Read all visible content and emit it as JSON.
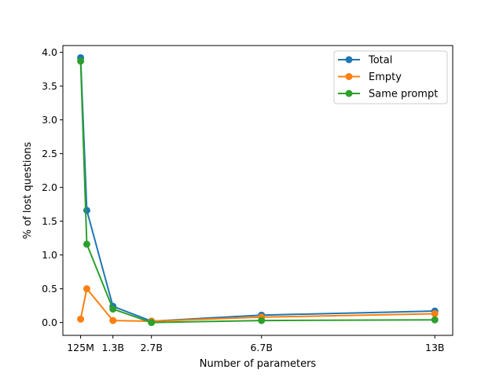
{
  "chart_data": {
    "type": "line",
    "title": "",
    "xlabel": "Number of parameters",
    "ylabel": "% of lost questions",
    "x_values": [
      0.125,
      0.35,
      1.3,
      2.7,
      6.7,
      13
    ],
    "x_ticks": [
      {
        "value": 0.125,
        "label": "125M"
      },
      {
        "value": 1.3,
        "label": "1.3B"
      },
      {
        "value": 2.7,
        "label": "2.7B"
      },
      {
        "value": 6.7,
        "label": "6.7B"
      },
      {
        "value": 13,
        "label": "13B"
      }
    ],
    "y_ticks": [
      0.0,
      0.5,
      1.0,
      1.5,
      2.0,
      2.5,
      3.0,
      3.5,
      4.0
    ],
    "y_tick_labels": [
      "0.0",
      "0.5",
      "1.0",
      "1.5",
      "2.0",
      "2.5",
      "3.0",
      "3.5",
      "4.0"
    ],
    "xlim": [
      -0.52,
      13.65
    ],
    "ylim": [
      -0.19,
      4.1
    ],
    "grid": false,
    "legend_position": "top-right",
    "series": [
      {
        "name": "Total",
        "color": "#1f77b4",
        "values": [
          3.92,
          1.66,
          0.24,
          0.02,
          0.11,
          0.17
        ]
      },
      {
        "name": "Empty",
        "color": "#ff7f0e",
        "values": [
          0.05,
          0.5,
          0.03,
          0.02,
          0.08,
          0.13
        ]
      },
      {
        "name": "Same prompt",
        "color": "#2ca02c",
        "values": [
          3.87,
          1.16,
          0.2,
          0.0,
          0.03,
          0.04
        ]
      }
    ]
  }
}
